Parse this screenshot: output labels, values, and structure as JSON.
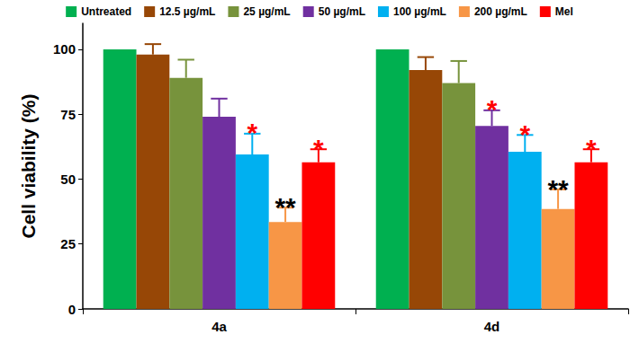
{
  "chart_data": {
    "type": "bar",
    "categories": [
      "4a",
      "4d"
    ],
    "ylabel": "Cell viability (%)",
    "ylim": [
      0,
      110
    ],
    "yticks": [
      0,
      25,
      50,
      75,
      100
    ],
    "grid": false,
    "legend": "top",
    "series": [
      {
        "name": "Untreated",
        "color": "#00b050",
        "values": [
          100,
          100
        ],
        "errors": [
          0,
          0
        ],
        "significance": [
          null,
          null
        ]
      },
      {
        "name": "12.5 µg/mL",
        "color": "#974706",
        "values": [
          98,
          92
        ],
        "errors": [
          4,
          5
        ],
        "significance": [
          null,
          null
        ]
      },
      {
        "name": "25 µg/mL",
        "color": "#77933c",
        "values": [
          89,
          87
        ],
        "errors": [
          7,
          8.5
        ],
        "significance": [
          null,
          null
        ]
      },
      {
        "name": "50 µg/mL",
        "color": "#7030a0",
        "values": [
          74,
          70.5
        ],
        "errors": [
          7,
          6
        ],
        "significance": [
          null,
          "*"
        ]
      },
      {
        "name": "100 µg/mL",
        "color": "#00b0f0",
        "values": [
          59.5,
          60.5
        ],
        "errors": [
          8,
          6.5
        ],
        "significance": [
          "*",
          "*"
        ]
      },
      {
        "name": "200 µg/mL",
        "color": "#f79646",
        "values": [
          33.5,
          38.5
        ],
        "errors": [
          5.5,
          7.5
        ],
        "significance": [
          "**",
          "**"
        ]
      },
      {
        "name": "Mel",
        "color": "#ff0000",
        "values": [
          56.5,
          56.5
        ],
        "errors": [
          5,
          5
        ],
        "significance": [
          "*",
          "*"
        ]
      }
    ]
  }
}
